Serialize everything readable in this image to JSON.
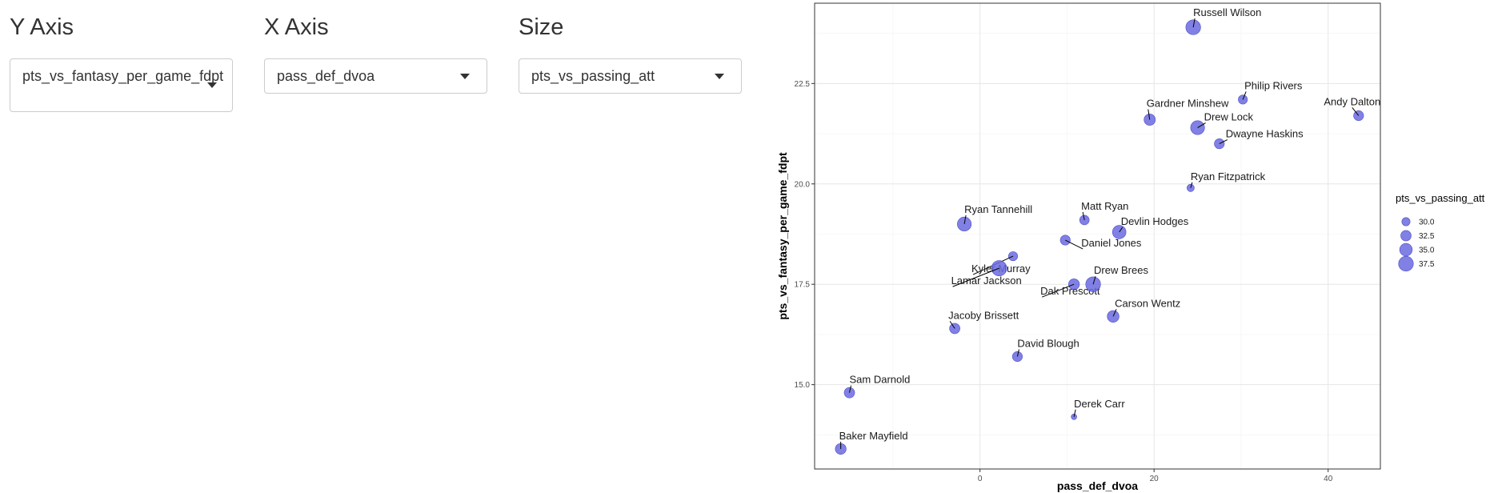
{
  "controls": {
    "y_axis": {
      "label": "Y Axis",
      "value": "pts_vs_fantasy_per_game_fdpt"
    },
    "x_axis": {
      "label": "X Axis",
      "value": "pass_def_dvoa"
    },
    "size": {
      "label": "Size",
      "value": "pts_vs_passing_att"
    }
  },
  "chart_data": {
    "type": "scatter",
    "title": "",
    "xlabel": "pass_def_dvoa",
    "ylabel": "pts_vs_fantasy_per_game_fdpt",
    "xlim": [
      -19,
      46
    ],
    "ylim": [
      12.9,
      24.5
    ],
    "x_ticks": [
      0,
      20,
      40
    ],
    "x_tick_labels": [
      "0",
      "20",
      "40"
    ],
    "y_ticks": [
      15.0,
      17.5,
      20.0,
      22.5
    ],
    "y_tick_labels": [
      "15.0",
      "17.5",
      "20.0",
      "22.5"
    ],
    "grid": true,
    "point_color": "#6a6ae0",
    "legend": {
      "title": "pts_vs_passing_att",
      "placement": "right",
      "entries": [
        {
          "label": "30.0",
          "value": 30.0
        },
        {
          "label": "32.5",
          "value": 32.5
        },
        {
          "label": "35.0",
          "value": 35.0
        },
        {
          "label": "37.5",
          "value": 37.5
        }
      ]
    },
    "points": [
      {
        "name": "Russell Wilson",
        "x": 24.5,
        "y": 23.9,
        "size": 37.5
      },
      {
        "name": "Philip Rivers",
        "x": 30.2,
        "y": 22.1,
        "size": 31.0
      },
      {
        "name": "Andy Dalton",
        "x": 43.5,
        "y": 21.7,
        "size": 32.0
      },
      {
        "name": "Gardner Minshew",
        "x": 19.5,
        "y": 21.6,
        "size": 33.5
      },
      {
        "name": "Drew Lock",
        "x": 25.0,
        "y": 21.4,
        "size": 36.5
      },
      {
        "name": "Dwayne Haskins",
        "x": 27.5,
        "y": 21.0,
        "size": 32.0
      },
      {
        "name": "Ryan Fitzpatrick",
        "x": 24.2,
        "y": 19.9,
        "size": 29.0
      },
      {
        "name": "Matt Ryan",
        "x": 12.0,
        "y": 19.1,
        "size": 31.5
      },
      {
        "name": "Ryan Tannehill",
        "x": -1.8,
        "y": 19.0,
        "size": 36.5
      },
      {
        "name": "Devlin Hodges",
        "x": 16.0,
        "y": 18.8,
        "size": 36.0
      },
      {
        "name": "Daniel Jones",
        "x": 9.8,
        "y": 18.6,
        "size": 32.0
      },
      {
        "name": "Kyler Murray",
        "x": 3.8,
        "y": 18.2,
        "size": 31.0
      },
      {
        "name": "Lamar Jackson",
        "x": 2.2,
        "y": 17.9,
        "size": 38.0
      },
      {
        "name": "Dak Prescott",
        "x": 10.8,
        "y": 17.5,
        "size": 33.0
      },
      {
        "name": "Drew Brees",
        "x": 13.0,
        "y": 17.5,
        "size": 37.5
      },
      {
        "name": "Carson Wentz",
        "x": 15.3,
        "y": 16.7,
        "size": 34.0
      },
      {
        "name": "Jacoby Brissett",
        "x": -2.9,
        "y": 16.4,
        "size": 32.5
      },
      {
        "name": "David Blough",
        "x": 4.3,
        "y": 15.7,
        "size": 32.0
      },
      {
        "name": "Sam Darnold",
        "x": -15.0,
        "y": 14.8,
        "size": 32.5
      },
      {
        "name": "Derek Carr",
        "x": 10.8,
        "y": 14.2,
        "size": 27.0
      },
      {
        "name": "Baker Mayfield",
        "x": -16.0,
        "y": 13.4,
        "size": 33.0
      }
    ]
  }
}
